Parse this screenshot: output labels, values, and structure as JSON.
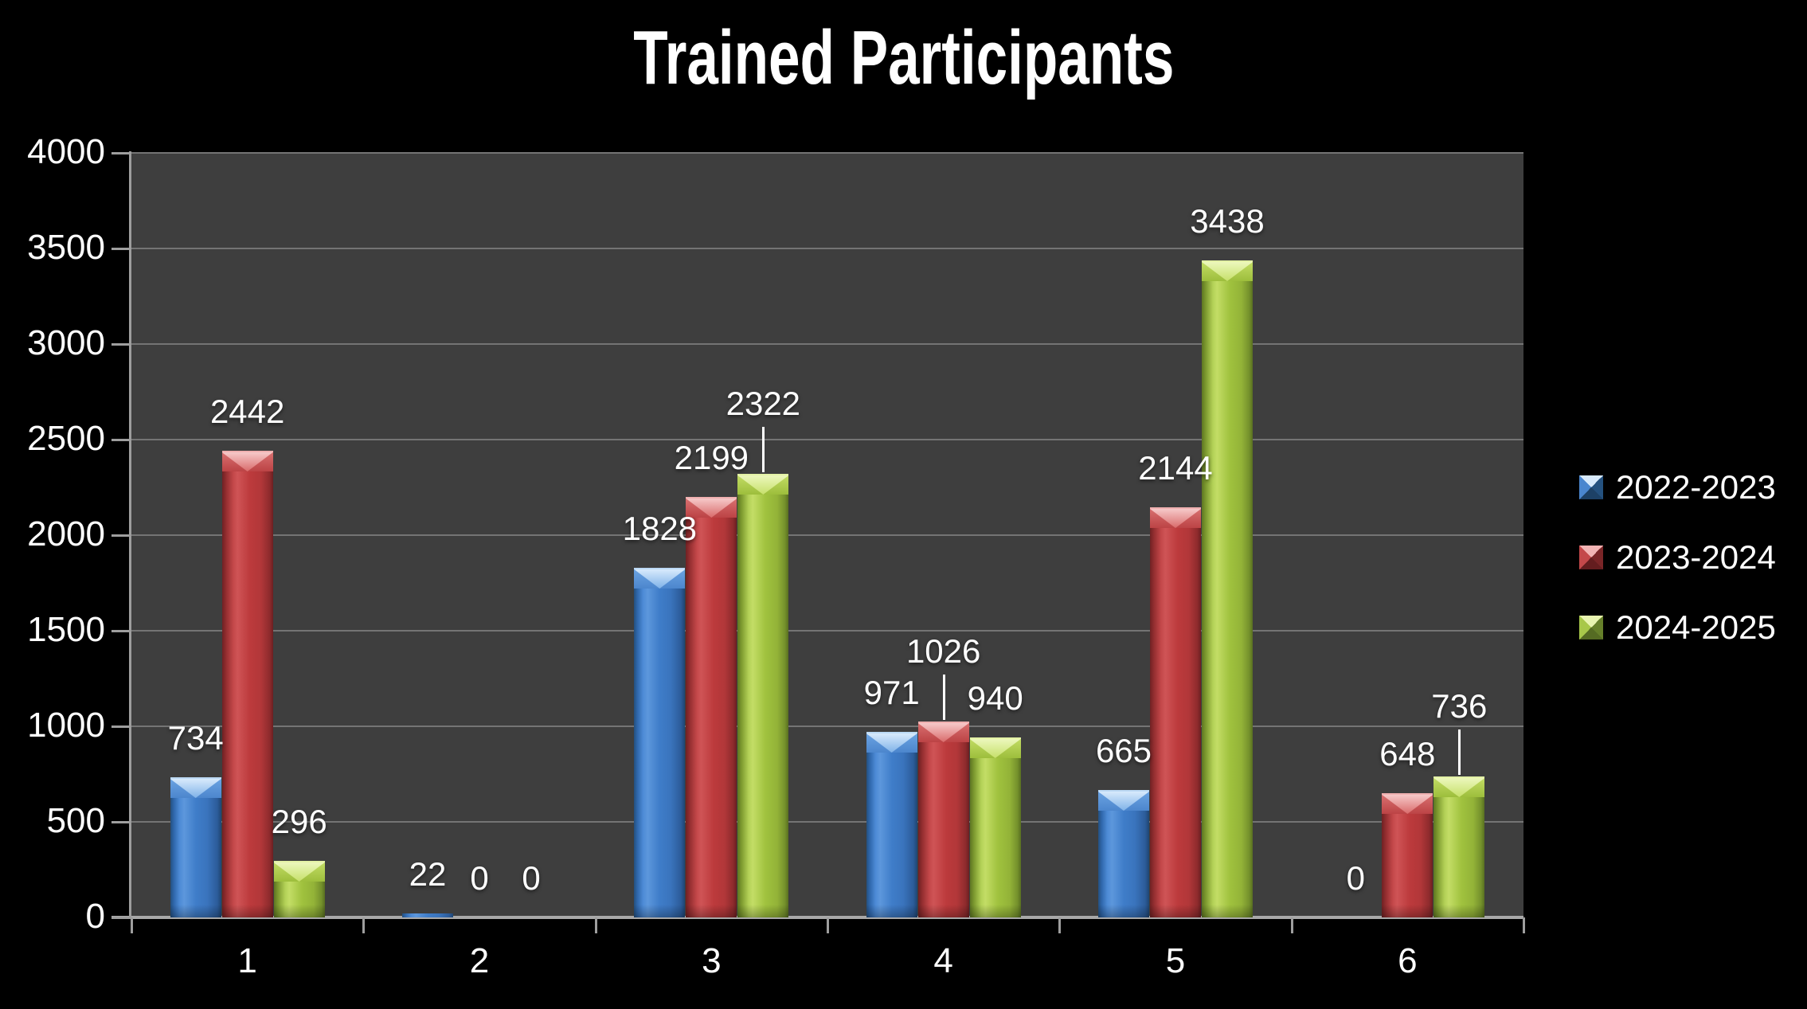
{
  "title": "Trained Participants",
  "chart_data": {
    "type": "bar",
    "title": "Trained Participants",
    "categories": [
      "1",
      "2",
      "3",
      "4",
      "5",
      "6"
    ],
    "series": [
      {
        "name": "2022-2023",
        "color": "#3E7CC7",
        "values": [
          734,
          22,
          1828,
          971,
          665,
          0
        ]
      },
      {
        "name": "2023-2024",
        "color": "#BE3B3D",
        "values": [
          2442,
          0,
          2199,
          1026,
          2144,
          648
        ]
      },
      {
        "name": "2024-2025",
        "color": "#A3C53F",
        "values": [
          296,
          0,
          2322,
          940,
          3438,
          736
        ]
      }
    ],
    "data_labels": [
      [
        "734",
        "22",
        "1828",
        "971",
        "665",
        "0"
      ],
      [
        "2442",
        "0",
        "2199",
        "1026",
        "2144",
        "648"
      ],
      [
        "296",
        "0",
        "2322",
        "940",
        "3438",
        "736"
      ]
    ],
    "leader_lines": [
      {
        "series": 2,
        "category": 2
      },
      {
        "series": 1,
        "category": 3
      },
      {
        "series": 2,
        "category": 5
      }
    ],
    "xlabel": "",
    "ylabel": "",
    "ylim": [
      0,
      4000
    ],
    "ytick_step": 500,
    "yticks": [
      "0",
      "500",
      "1000",
      "1500",
      "2000",
      "2500",
      "3000",
      "3500",
      "4000"
    ],
    "grid": true,
    "legend_position": "right",
    "plot_background": "#3E3E3E",
    "page_background": "#000000",
    "gridline_color": "#747474",
    "axis_color": "#9E9E9E",
    "text_color": "#FFFFFF",
    "legend_marker_facets": {
      "s0": {
        "top": "#D8EAFC",
        "right": "#24517F",
        "bottom": "#1D4166",
        "left": "#4A86CF"
      },
      "s1": {
        "top": "#F2B4B4",
        "right": "#7A2527",
        "bottom": "#641D1F",
        "left": "#C4484A"
      },
      "s2": {
        "top": "#E8F4B0",
        "right": "#66802A",
        "bottom": "#556B23",
        "left": "#A8C84A"
      }
    }
  }
}
